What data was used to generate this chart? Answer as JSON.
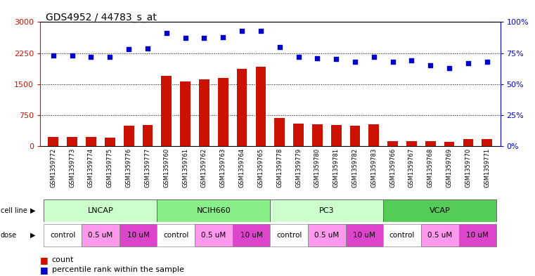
{
  "title": "GDS4952 / 44783_s_at",
  "samples": [
    "GSM1359772",
    "GSM1359773",
    "GSM1359774",
    "GSM1359775",
    "GSM1359776",
    "GSM1359777",
    "GSM1359760",
    "GSM1359761",
    "GSM1359762",
    "GSM1359763",
    "GSM1359764",
    "GSM1359765",
    "GSM1359778",
    "GSM1359779",
    "GSM1359780",
    "GSM1359781",
    "GSM1359782",
    "GSM1359783",
    "GSM1359766",
    "GSM1359767",
    "GSM1359768",
    "GSM1359769",
    "GSM1359770",
    "GSM1359771"
  ],
  "counts": [
    220,
    230,
    220,
    205,
    490,
    510,
    1700,
    1570,
    1620,
    1650,
    1870,
    1920,
    680,
    540,
    530,
    510,
    500,
    530,
    120,
    130,
    120,
    105,
    175,
    170
  ],
  "percentiles": [
    73,
    73,
    72,
    72,
    78,
    79,
    91,
    87,
    87,
    88,
    93,
    93,
    80,
    72,
    71,
    70,
    68,
    72,
    68,
    69,
    65,
    63,
    67,
    68
  ],
  "cell_line_groups": [
    {
      "name": "LNCAP",
      "start": 0,
      "end": 5,
      "color": "#ccffcc"
    },
    {
      "name": "NCIH660",
      "start": 6,
      "end": 11,
      "color": "#88ee88"
    },
    {
      "name": "PC3",
      "start": 12,
      "end": 17,
      "color": "#ccffcc"
    },
    {
      "name": "VCAP",
      "start": 18,
      "end": 23,
      "color": "#55cc55"
    }
  ],
  "dose_label_groups": [
    {
      "label": "control",
      "start": 0,
      "end": 1,
      "color": "#ffffff"
    },
    {
      "label": "0.5 uM",
      "start": 2,
      "end": 3,
      "color": "#ff99ee"
    },
    {
      "label": "10 uM",
      "start": 4,
      "end": 5,
      "color": "#dd44cc"
    },
    {
      "label": "control",
      "start": 6,
      "end": 7,
      "color": "#ffffff"
    },
    {
      "label": "0.5 uM",
      "start": 8,
      "end": 9,
      "color": "#ff99ee"
    },
    {
      "label": "10 uM",
      "start": 10,
      "end": 11,
      "color": "#dd44cc"
    },
    {
      "label": "control",
      "start": 12,
      "end": 13,
      "color": "#ffffff"
    },
    {
      "label": "0.5 uM",
      "start": 14,
      "end": 15,
      "color": "#ff99ee"
    },
    {
      "label": "10 uM",
      "start": 16,
      "end": 17,
      "color": "#dd44cc"
    },
    {
      "label": "control",
      "start": 18,
      "end": 19,
      "color": "#ffffff"
    },
    {
      "label": "0.5 uM",
      "start": 20,
      "end": 21,
      "color": "#ff99ee"
    },
    {
      "label": "10 uM",
      "start": 22,
      "end": 23,
      "color": "#dd44cc"
    }
  ],
  "bar_color": "#cc1100",
  "dot_color": "#0000cc",
  "ylim_left": [
    0,
    3000
  ],
  "ylim_right": [
    0,
    100
  ],
  "yticks_left": [
    0,
    750,
    1500,
    2250,
    3000
  ],
  "yticks_right": [
    0,
    25,
    50,
    75,
    100
  ],
  "bg_color": "#ffffff",
  "gray_bg": "#cccccc"
}
